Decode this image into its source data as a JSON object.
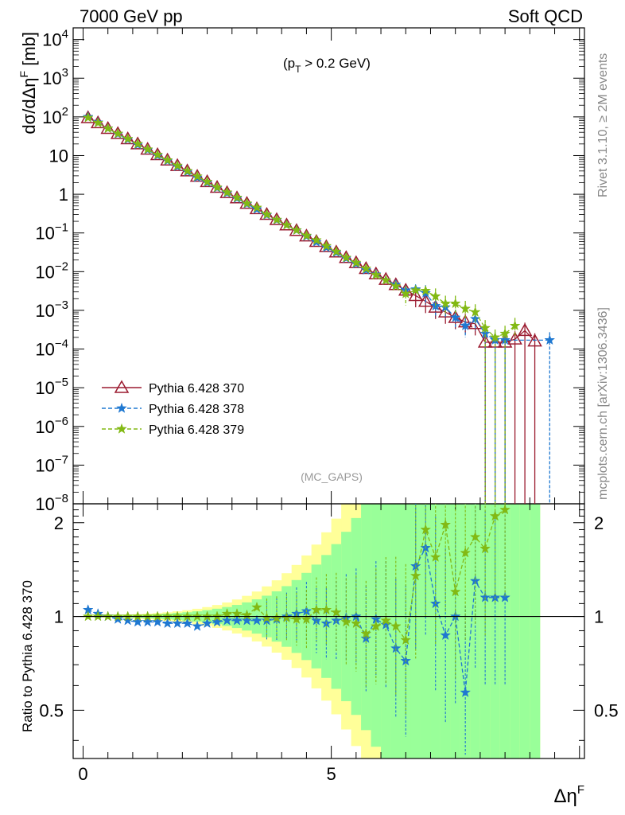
{
  "header": {
    "left": "7000 GeV pp",
    "right": "Soft QCD"
  },
  "side_labels": {
    "top": "Rivet 3.1.10, ≥ 2M events",
    "bottom": "mcplots.cern.ch [arXiv:1306.3436]"
  },
  "annotations": {
    "cut": "(p_T > 0.2 GeV)",
    "analysis": "(MC_GAPS)"
  },
  "colors": {
    "s370": "#9b1b30",
    "s378": "#1f78d1",
    "s379": "#82b914",
    "band_outer": "#ffff99",
    "band_inner": "#99ff99"
  },
  "chart_data": [
    {
      "type": "line",
      "panel": "main",
      "xlabel": "Δη^F",
      "ylabel": "dσ/dΔη^F [mb]",
      "xlim": [
        -0.2,
        10.1
      ],
      "ylim": [
        1e-08,
        20000
      ],
      "yscale": "log",
      "y_tick_labels": [
        "10^-8",
        "10^-7",
        "10^-6",
        "10^-5",
        "10^-4",
        "10^-3",
        "10^-2",
        "10^-1",
        "1",
        "10",
        "10^2",
        "10^3",
        "10^4"
      ],
      "legend_position": "left-middle",
      "series": [
        {
          "name": "Pythia 6.428 370",
          "marker": "open-triangle",
          "x": [
            0.1,
            0.3,
            0.5,
            0.7,
            0.9,
            1.1,
            1.3,
            1.5,
            1.7,
            1.9,
            2.1,
            2.3,
            2.5,
            2.7,
            2.9,
            3.1,
            3.3,
            3.5,
            3.7,
            3.9,
            4.1,
            4.3,
            4.5,
            4.7,
            4.9,
            5.1,
            5.3,
            5.5,
            5.7,
            5.9,
            6.1,
            6.3,
            6.5,
            6.7,
            6.9,
            7.1,
            7.3,
            7.5,
            7.7,
            7.9,
            8.1,
            8.3,
            8.5,
            8.7,
            8.9,
            9.1
          ],
          "y": [
            95,
            70,
            50,
            37,
            27,
            20,
            14.5,
            10.5,
            7.6,
            5.5,
            4.0,
            2.9,
            2.1,
            1.5,
            1.1,
            0.8,
            0.58,
            0.42,
            0.3,
            0.22,
            0.16,
            0.115,
            0.083,
            0.06,
            0.044,
            0.032,
            0.023,
            0.017,
            0.012,
            0.0087,
            0.0063,
            0.0046,
            0.0033,
            0.0024,
            0.0017,
            0.0012,
            0.0009,
            0.00065,
            0.0005,
            0.00045,
            0.00015,
            0.00015,
            0.00015,
            0.00018,
            0.0003,
            0.00016
          ]
        },
        {
          "name": "Pythia 6.428 378",
          "marker": "star",
          "x": [
            0.1,
            0.3,
            0.5,
            0.7,
            0.9,
            1.1,
            1.3,
            1.5,
            1.7,
            1.9,
            2.1,
            2.3,
            2.5,
            2.7,
            2.9,
            3.1,
            3.3,
            3.5,
            3.7,
            3.9,
            4.1,
            4.3,
            4.5,
            4.7,
            4.9,
            5.1,
            5.3,
            5.5,
            5.7,
            5.9,
            6.1,
            6.3,
            6.5,
            6.7,
            6.9,
            7.1,
            7.3,
            7.5,
            7.7,
            7.9,
            8.1,
            8.3,
            8.5,
            9.4
          ],
          "y": [
            100,
            72,
            50,
            36,
            26,
            19,
            14,
            10,
            7.3,
            5.2,
            3.8,
            2.7,
            2.0,
            1.45,
            1.07,
            0.78,
            0.56,
            0.41,
            0.29,
            0.215,
            0.16,
            0.117,
            0.082,
            0.058,
            0.042,
            0.031,
            0.022,
            0.016,
            0.011,
            0.0085,
            0.006,
            0.0046,
            0.0033,
            0.0035,
            0.0028,
            0.0013,
            0.0012,
            0.00065,
            0.0004,
            0.0006,
            0.00025,
            0.00017,
            0.00017,
            0.00017
          ]
        },
        {
          "name": "Pythia 6.428 379",
          "marker": "star",
          "x": [
            0.1,
            0.3,
            0.5,
            0.7,
            0.9,
            1.1,
            1.3,
            1.5,
            1.7,
            1.9,
            2.1,
            2.3,
            2.5,
            2.7,
            2.9,
            3.1,
            3.3,
            3.5,
            3.7,
            3.9,
            4.1,
            4.3,
            4.5,
            4.7,
            4.9,
            5.1,
            5.3,
            5.5,
            5.7,
            5.9,
            6.1,
            6.3,
            6.5,
            6.7,
            6.9,
            7.1,
            7.3,
            7.5,
            7.7,
            7.9,
            8.1,
            8.3,
            8.5,
            8.7
          ],
          "y": [
            95,
            70,
            50,
            37,
            27,
            20,
            14.5,
            10.5,
            7.6,
            5.5,
            4.0,
            2.9,
            2.1,
            1.5,
            1.12,
            0.82,
            0.58,
            0.45,
            0.3,
            0.22,
            0.16,
            0.118,
            0.085,
            0.065,
            0.046,
            0.033,
            0.023,
            0.017,
            0.012,
            0.0082,
            0.006,
            0.0042,
            0.0027,
            0.0033,
            0.0032,
            0.0023,
            0.0015,
            0.0015,
            0.0011,
            0.0009,
            0.00035,
            0.0002,
            0.00025,
            0.0004
          ]
        }
      ]
    },
    {
      "type": "line",
      "panel": "ratio",
      "ylabel": "Ratio to Pythia 6.428 370",
      "xlabel": "Δη^F",
      "xlim": [
        -0.2,
        10.1
      ],
      "ylim": [
        0.35,
        2.3
      ],
      "yscale": "log",
      "x_ticks": [
        0,
        5
      ],
      "y_ticks": [
        0.5,
        1,
        2
      ],
      "series": [
        {
          "name": "Pythia 6.428 378",
          "x": [
            0.1,
            0.3,
            0.5,
            0.7,
            0.9,
            1.1,
            1.3,
            1.5,
            1.7,
            1.9,
            2.1,
            2.3,
            2.5,
            2.7,
            2.9,
            3.1,
            3.3,
            3.5,
            3.7,
            3.9,
            4.1,
            4.3,
            4.5,
            4.7,
            4.9,
            5.1,
            5.3,
            5.5,
            5.7,
            5.9,
            6.1,
            6.3,
            6.5,
            6.7,
            6.9,
            7.1,
            7.3,
            7.5,
            7.7,
            7.9,
            8.1,
            8.3,
            8.5
          ],
          "y": [
            1.05,
            1.02,
            1.0,
            0.98,
            0.97,
            0.96,
            0.96,
            0.96,
            0.95,
            0.95,
            0.95,
            0.93,
            0.95,
            0.96,
            0.97,
            0.97,
            0.97,
            0.97,
            0.97,
            0.98,
            1.0,
            1.02,
            1.04,
            0.97,
            0.95,
            0.97,
            0.99,
            1.0,
            0.85,
            0.98,
            0.94,
            0.79,
            0.72,
            1.45,
            1.66,
            1.1,
            0.87,
            1.0,
            0.57,
            1.3,
            1.15,
            1.15,
            1.15
          ]
        },
        {
          "name": "Pythia 6.428 379",
          "x": [
            0.1,
            0.3,
            0.5,
            0.7,
            0.9,
            1.1,
            1.3,
            1.5,
            1.7,
            1.9,
            2.1,
            2.3,
            2.5,
            2.7,
            2.9,
            3.1,
            3.3,
            3.5,
            3.7,
            3.9,
            4.1,
            4.3,
            4.5,
            4.7,
            4.9,
            5.1,
            5.3,
            5.5,
            5.7,
            5.9,
            6.1,
            6.3,
            6.5,
            6.7,
            6.9,
            7.1,
            7.3,
            7.5,
            7.7,
            7.9,
            8.1,
            8.3,
            8.5
          ],
          "y": [
            1.0,
            1.0,
            1.0,
            1.0,
            1.0,
            1.0,
            1.0,
            1.0,
            1.0,
            1.0,
            1.0,
            1.0,
            1.0,
            1.0,
            1.02,
            1.02,
            1.01,
            1.07,
            0.99,
            0.99,
            0.99,
            0.98,
            0.98,
            1.05,
            1.05,
            1.03,
            0.96,
            0.95,
            0.88,
            0.93,
            0.97,
            0.93,
            0.84,
            1.35,
            1.9,
            1.55,
            1.97,
            1.2,
            1.6,
            1.8,
            1.65,
            2.1,
            2.2
          ]
        }
      ]
    }
  ]
}
